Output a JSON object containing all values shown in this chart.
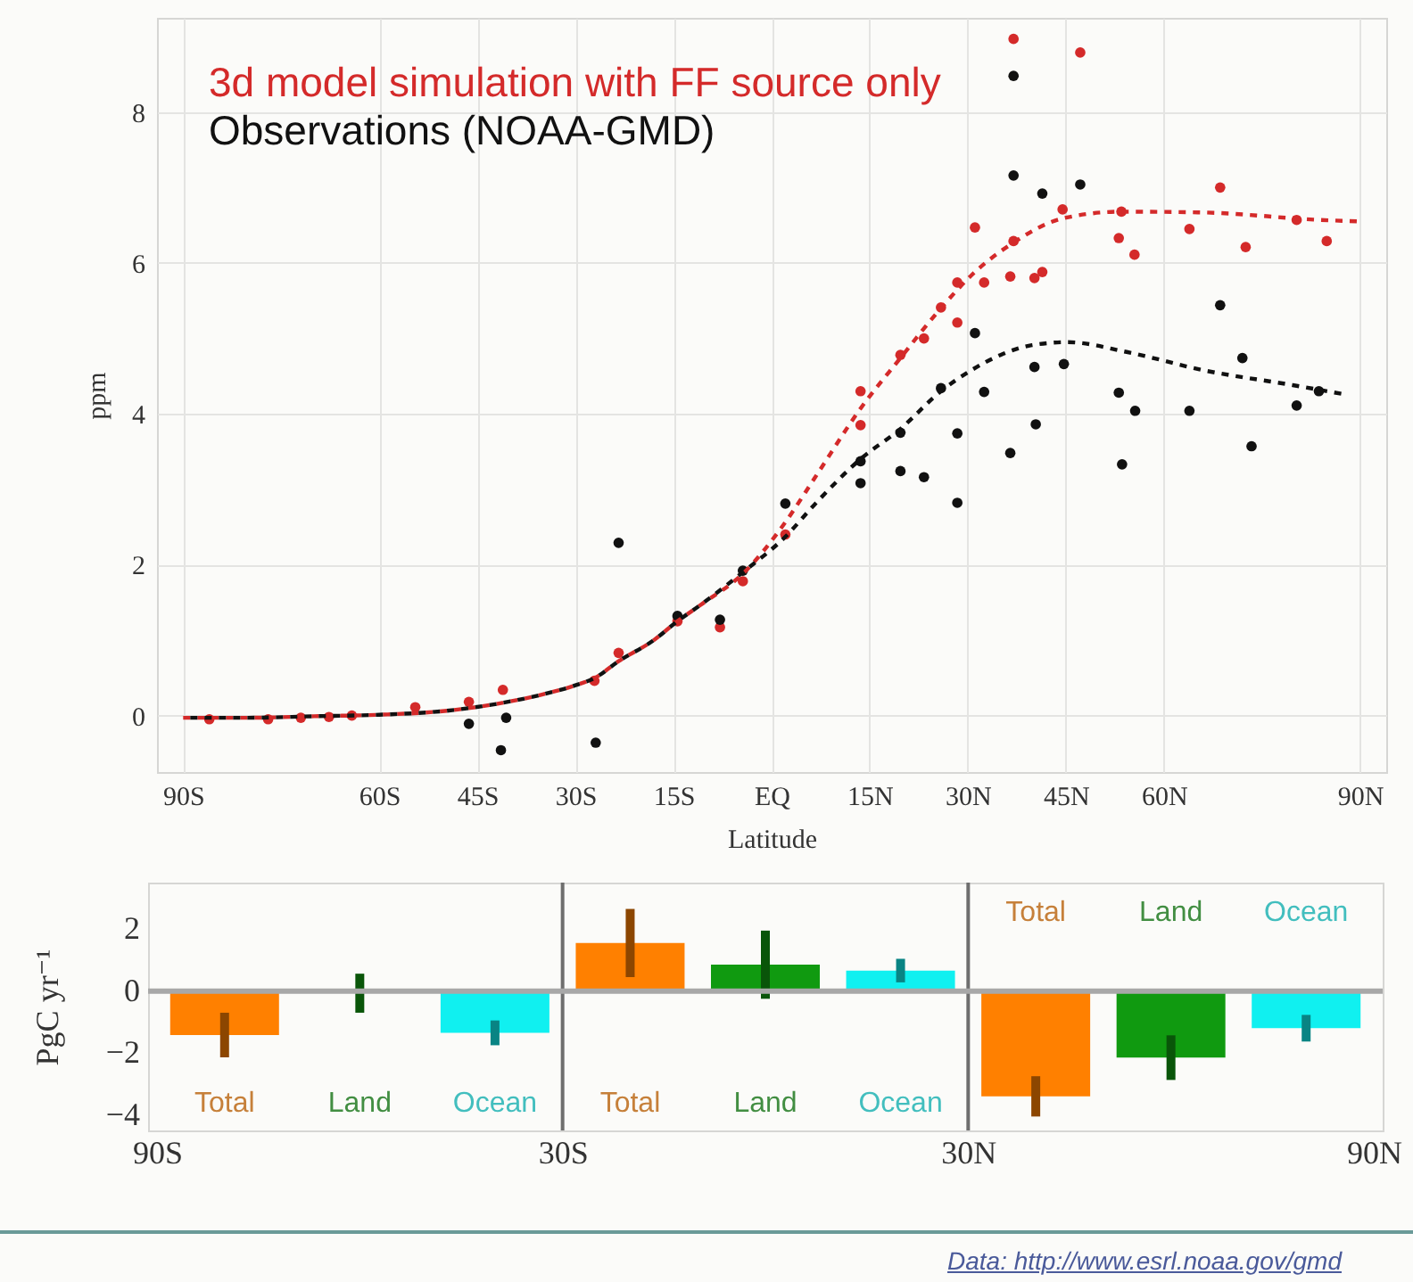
{
  "chart_data": [
    {
      "type": "scatter",
      "xlabel": "Latitude",
      "ylabel": "ppm",
      "xlim": [
        -94,
        94
      ],
      "ylim": [
        -0.75,
        9.25
      ],
      "xticks": [
        {
          "value": -90,
          "label": "90S"
        },
        {
          "value": -60,
          "label": "60S"
        },
        {
          "value": -45,
          "label": "45S"
        },
        {
          "value": -30,
          "label": "30S"
        },
        {
          "value": -15,
          "label": "15S"
        },
        {
          "value": 0,
          "label": "EQ"
        },
        {
          "value": 15,
          "label": "15N"
        },
        {
          "value": 30,
          "label": "30N"
        },
        {
          "value": 45,
          "label": "45N"
        },
        {
          "value": 60,
          "label": "60N"
        },
        {
          "value": 90,
          "label": "90N"
        }
      ],
      "yticks": [
        0,
        2,
        4,
        6,
        8
      ],
      "grid": true,
      "legend": "top left",
      "series": [
        {
          "name": "3d model simulation with FF source only",
          "marker": "circle",
          "color": "#d42a2a",
          "x": [
            -86,
            -77,
            -72,
            -67.7,
            -64.2,
            -54.5,
            -46.3,
            -41.1,
            -27.1,
            -23.4,
            -14.4,
            -7.9,
            -4.4,
            2.1,
            13.6,
            13.6,
            19.7,
            23.3,
            25.9,
            28.4,
            28.4,
            31.1,
            32.5,
            37,
            37,
            36.5,
            40.2,
            41.4,
            44.5,
            47.2,
            68.6,
            53.5,
            63.9,
            80.3,
            53.1,
            55.5,
            72.5,
            84.9
          ],
          "values": [
            -0.05,
            -0.05,
            -0.03,
            -0.02,
            0,
            0.11,
            0.18,
            0.34,
            0.46,
            0.83,
            1.25,
            1.17,
            1.78,
            2.4,
            4.3,
            3.85,
            4.78,
            5.0,
            5.41,
            5.74,
            5.21,
            6.47,
            5.74,
            8.97,
            6.29,
            5.82,
            5.8,
            5.88,
            6.71,
            8.79,
            7.0,
            6.68,
            6.45,
            6.57,
            6.33,
            6.11,
            6.21,
            6.29
          ]
        },
        {
          "name": "Observations (NOAA-GMD)",
          "marker": "circle",
          "color": "#111111",
          "x": [
            -46.3,
            -40.6,
            -41.4,
            -26.9,
            -23.4,
            -14.4,
            -7.9,
            -4.4,
            2.1,
            13.6,
            13.6,
            19.7,
            19.7,
            23.3,
            25.9,
            28.4,
            28.4,
            31.1,
            32.5,
            37,
            37,
            36.5,
            41.4,
            40.2,
            40.4,
            44.7,
            47.2,
            68.6,
            72,
            53.1,
            55.6,
            63.9,
            83.7,
            80.3,
            53.6,
            73.4
          ],
          "values": [
            -0.11,
            -0.03,
            -0.46,
            -0.36,
            2.29,
            1.32,
            1.27,
            1.92,
            2.81,
            3.37,
            3.08,
            3.75,
            3.24,
            3.16,
            4.34,
            3.74,
            2.82,
            5.07,
            4.29,
            8.48,
            7.16,
            3.48,
            6.92,
            4.62,
            3.86,
            4.66,
            7.04,
            5.44,
            4.74,
            4.28,
            4.04,
            4.04,
            4.3,
            4.11,
            3.33,
            3.57
          ]
        },
        {
          "type": "line",
          "line_style": "dashed",
          "color": "#d42a2a",
          "x": [
            -90,
            -80,
            -70,
            -60,
            -50,
            -41,
            -35,
            -30,
            -27,
            -23.4,
            -18,
            -14.4,
            -10.8,
            -4.4,
            2,
            6.6,
            13.6,
            19.7,
            25.9,
            30.6,
            37,
            44.5,
            53.5,
            65.8,
            84,
            90
          ],
          "values": [
            -0.03,
            -0.03,
            -0.01,
            0.01,
            0.06,
            0.17,
            0.28,
            0.4,
            0.5,
            0.72,
            1.0,
            1.25,
            1.47,
            1.88,
            2.55,
            3.15,
            4.07,
            4.74,
            5.4,
            5.84,
            6.27,
            6.59,
            6.68,
            6.67,
            6.57,
            6.55
          ]
        },
        {
          "type": "line",
          "line_style": "dashed",
          "color": "#111111",
          "x": [
            -90,
            -80,
            -70,
            -60,
            -50,
            -41,
            -35,
            -30,
            -27,
            -23.4,
            -18,
            -14.4,
            -10.8,
            -4.4,
            2.1,
            6.6,
            13.6,
            19.7,
            25.9,
            30.6,
            35,
            39.8,
            45.3,
            54.3,
            65.9,
            79.7,
            87.5
          ],
          "values": [
            -0.03,
            -0.03,
            -0.01,
            0.01,
            0.06,
            0.17,
            0.28,
            0.4,
            0.5,
            0.72,
            1.0,
            1.25,
            1.47,
            1.9,
            2.37,
            2.8,
            3.4,
            3.8,
            4.3,
            4.58,
            4.78,
            4.91,
            4.95,
            4.82,
            4.58,
            4.38,
            4.26
          ]
        }
      ]
    },
    {
      "type": "bar",
      "ylabel": "PgC yr⁻¹",
      "xlim": [
        -90,
        90
      ],
      "ylim": [
        -4.5,
        3.5
      ],
      "xticks": [
        {
          "value": -90,
          "label": "90S"
        },
        {
          "value": -30,
          "label": "30S"
        },
        {
          "value": 30,
          "label": "30N"
        },
        {
          "value": 90,
          "label": "90N"
        }
      ],
      "yticks": [
        -4,
        -2,
        0,
        2
      ],
      "ref_lines": [
        {
          "axis": "x",
          "value": -30,
          "color": "#6e6e6e"
        },
        {
          "axis": "x",
          "value": 30,
          "color": "#6e6e6e"
        },
        {
          "axis": "y",
          "value": 0,
          "color": "#a8a8a8"
        }
      ],
      "series": [
        {
          "name": "Total",
          "color": "#ff8000",
          "x": [
            -80,
            -20,
            40
          ],
          "values": [
            -1.42,
            1.55,
            -3.4
          ],
          "errors": [
            0.72,
            1.1,
            0.65
          ]
        },
        {
          "name": "Land",
          "color": "#109a10",
          "x": [
            -60,
            0,
            60
          ],
          "values": [
            -0.07,
            0.85,
            -2.15
          ],
          "errors": [
            0.63,
            1.1,
            0.72
          ]
        },
        {
          "name": "Ocean",
          "color": "#10f0f0",
          "x": [
            -40,
            20,
            80
          ],
          "values": [
            -1.35,
            0.66,
            -1.2
          ],
          "errors": [
            0.4,
            0.38,
            0.43
          ]
        }
      ],
      "annotations": [
        "Data: http://www.esrl.noaa.gov/gmd"
      ]
    }
  ]
}
